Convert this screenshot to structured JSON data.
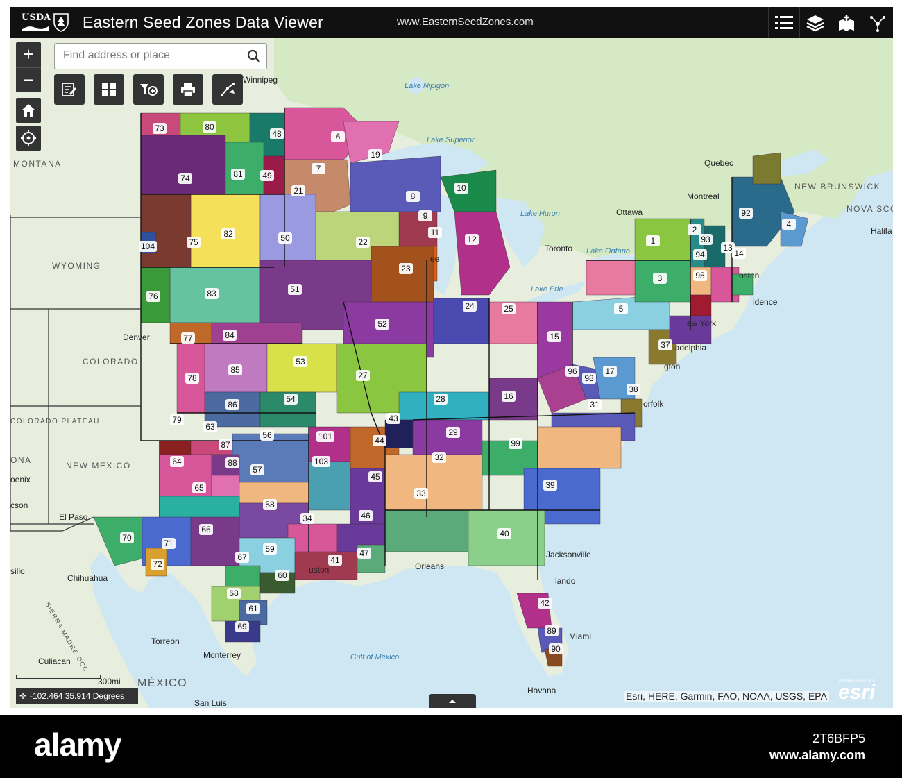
{
  "header": {
    "logo_usda": "USDA",
    "title": "Eastern Seed Zones Data Viewer",
    "url": "www.EasternSeedZones.com",
    "buttons": [
      "legend-icon",
      "layers-icon",
      "add-data-icon",
      "share-icon"
    ]
  },
  "search": {
    "placeholder": "Find address or place"
  },
  "map_controls": {
    "zoom_in": "+",
    "zoom_out": "−"
  },
  "toolbar": [
    "edit-icon",
    "basemap-gallery-icon",
    "filter-icon",
    "print-icon",
    "measure-icon"
  ],
  "colors": {
    "header_bg": "#111111",
    "control_bg": "#333333",
    "water": "#cfe7f2",
    "land": "#e8eedd"
  },
  "places": {
    "canada_us": [
      "Winnipeg",
      "MONTANA",
      "WYOMING",
      "Denver",
      "COLORADO",
      "Quebec",
      "NEW BRUNSWICK",
      "NOVA SCOTIA",
      "Halifa",
      "Montreal",
      "Ottawa",
      "Toronto"
    ],
    "cities": [
      "oston",
      "idence",
      "ew York",
      "ladelphia",
      "gton",
      "orfolk",
      "El Paso",
      "Jacksonville",
      "lando",
      "Miami",
      "Orleans",
      "uston",
      "ee"
    ],
    "mexico": [
      "Chihuahua",
      "Torreón",
      "Monterrey",
      "Culiacan",
      "MÉXICO",
      "San Luis",
      "Havana",
      "NEW MEXICO",
      "COLORADO PLATEAU",
      "ONA",
      "oenix",
      "cson",
      "sillo",
      "SIERRA MADRE OCC"
    ],
    "water": [
      "Lake Nipigon",
      "Lake Superior",
      "Lake Huron",
      "Lake Ontario",
      "Lake Erie",
      "Gulf of Mexico"
    ]
  },
  "zone_labels": [
    "73",
    "80",
    "48",
    "6",
    "19",
    "74",
    "81",
    "49",
    "7",
    "21",
    "8",
    "10",
    "9",
    "11",
    "12",
    "22",
    "23",
    "82",
    "50",
    "75",
    "104",
    "83",
    "51",
    "76",
    "77",
    "84",
    "52",
    "24",
    "25",
    "53",
    "27",
    "85",
    "78",
    "86",
    "54",
    "28",
    "16",
    "79",
    "63",
    "56",
    "87",
    "88",
    "57",
    "101",
    "44",
    "43",
    "29",
    "103",
    "45",
    "99",
    "32",
    "64",
    "65",
    "58",
    "34",
    "46",
    "33",
    "39",
    "70",
    "71",
    "66",
    "59",
    "67",
    "60",
    "41",
    "47",
    "40",
    "72",
    "68",
    "61",
    "69",
    "42",
    "89",
    "90",
    "15",
    "96",
    "98",
    "17",
    "38",
    "31",
    "37",
    "5",
    "3",
    "1",
    "2",
    "93",
    "94",
    "95",
    "13",
    "14",
    "92",
    "4"
  ],
  "scale": {
    "label": "300mi"
  },
  "coordinates": {
    "text": "-102.464 35.914 Degrees"
  },
  "attribution": "Esri, HERE, Garmin, FAO, NOAA, USGS, EPA",
  "esri_logo": {
    "powered": "POWERED BY",
    "name": "esri"
  },
  "watermark": {
    "brand": "alamy",
    "code": "2T6BFP5",
    "site": "www.alamy.com"
  }
}
